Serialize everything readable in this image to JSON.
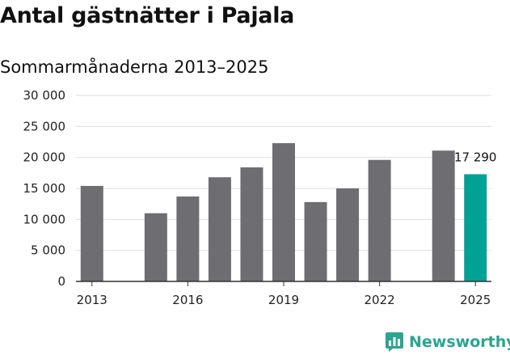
{
  "chart_data": {
    "type": "bar",
    "title": "Antal gästnätter i Pajala",
    "subtitle": "Sommarmånaderna 2013–2025",
    "categories": [
      "2013",
      "2014",
      "2015",
      "2016",
      "2017",
      "2018",
      "2019",
      "2020",
      "2021",
      "2022",
      "2023",
      "2024",
      "2025"
    ],
    "values": [
      15400,
      null,
      11000,
      13700,
      16800,
      18400,
      22300,
      12800,
      15000,
      19600,
      null,
      21100,
      17290
    ],
    "x_tick_labels": [
      "2013",
      "2016",
      "2019",
      "2022",
      "2025"
    ],
    "y_tick_labels": [
      "0",
      "5 000",
      "10 000",
      "15 000",
      "20 000",
      "25 000",
      "30 000"
    ],
    "ylim": [
      0,
      30000
    ],
    "grid": true,
    "highlight": {
      "category": "2025",
      "label": "17 290"
    },
    "colors": {
      "bar": "#6e6d72",
      "highlight": "#00a295",
      "grid": "#dedede",
      "axis": "#333333"
    }
  },
  "brand": {
    "name": "Newsworthy",
    "icon": "newsworthy-logo-icon",
    "color": "#2aa590"
  }
}
